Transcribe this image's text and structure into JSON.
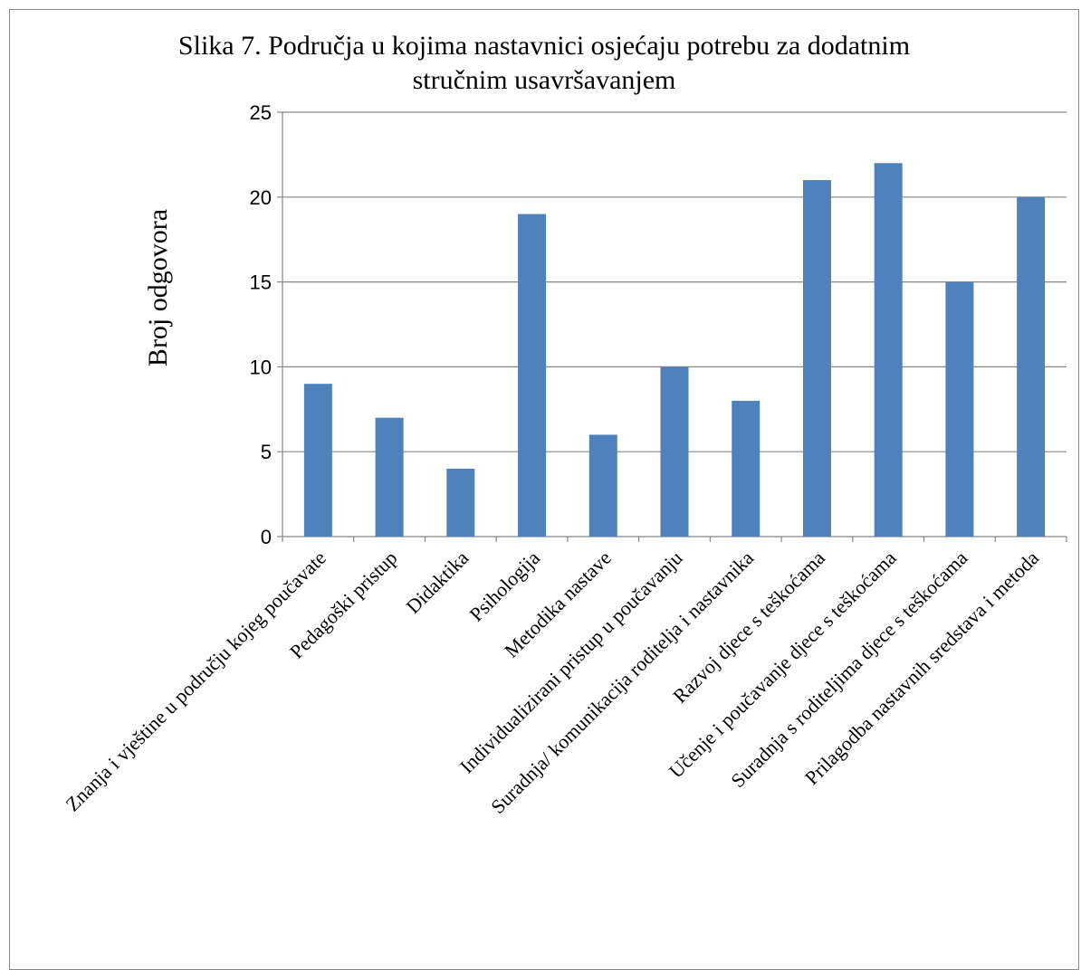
{
  "chart_data": {
    "type": "bar",
    "title_line1": "Slika 7. Područja u kojima nastavnici osjećaju potrebu za dodatnim",
    "title_line2": "stručnim usavršavanjem",
    "xlabel": "",
    "ylabel": "Broj odgovora",
    "ylim": [
      0,
      25
    ],
    "yticks": [
      "0",
      "5",
      "10",
      "15",
      "20",
      "25"
    ],
    "grid": "horizontal",
    "legend": "none",
    "bar_color": "#4F81BD",
    "categories": [
      "Znanja i vještine u području kojeg poučavate",
      "Pedagoški pristup",
      "Didaktika",
      "Psihologija",
      "Metodika nastave",
      "Individualizirani pristup u poučavanju",
      "Suradnja/ komunikacija roditelja i nastavnika",
      "Razvoj djece s teškoćama",
      "Učenje i poučavanje djece s teškoćama",
      "Suradnja s roditeljima djece s teškoćama",
      "Prilagodba nastavnih sredstava  i metoda"
    ],
    "values": [
      9,
      7,
      4,
      19,
      6,
      10,
      8,
      21,
      22,
      15,
      20
    ]
  }
}
